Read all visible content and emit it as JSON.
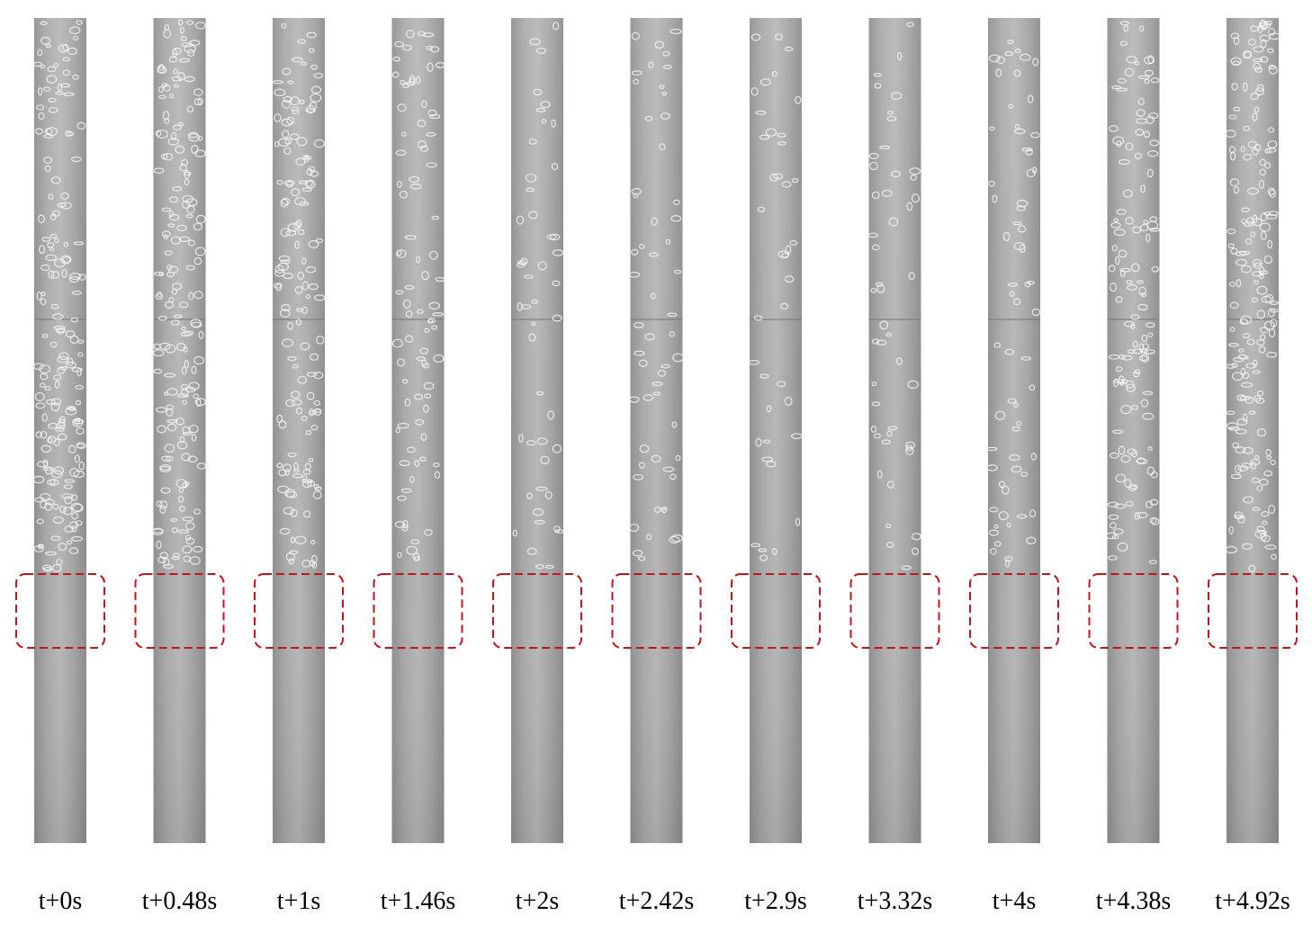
{
  "frames": [
    {
      "label": "t+0s"
    },
    {
      "label": "t+0.48s"
    },
    {
      "label": "t+1s"
    },
    {
      "label": "t+1.46s"
    },
    {
      "label": "t+2s"
    },
    {
      "label": "t+2.42s"
    },
    {
      "label": "t+2.9s"
    },
    {
      "label": "t+3.32s"
    },
    {
      "label": "t+4s"
    },
    {
      "label": "t+4.38s"
    },
    {
      "label": "t+4.92s"
    }
  ]
}
